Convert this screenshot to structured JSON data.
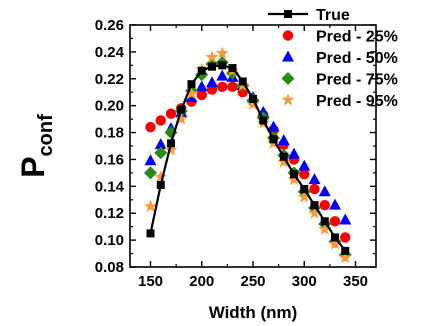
{
  "chart_data": {
    "type": "line",
    "xlabel": "Width (nm)",
    "ylabel_main": "P",
    "ylabel_sub": "conf",
    "xlim": [
      130,
      370
    ],
    "ylim": [
      0.08,
      0.26
    ],
    "xticks": [
      "150",
      "200",
      "250",
      "300",
      "350"
    ],
    "yticks": [
      "0.08",
      "0.10",
      "0.12",
      "0.14",
      "0.16",
      "0.18",
      "0.20",
      "0.22",
      "0.24",
      "0.26"
    ],
    "legend_position": "top-right",
    "x": [
      150,
      160,
      170,
      180,
      190,
      200,
      210,
      220,
      230,
      240,
      250,
      260,
      270,
      280,
      290,
      300,
      310,
      320,
      330,
      340
    ],
    "series": [
      {
        "name": "True",
        "marker": "square-line",
        "color": "#000000",
        "values": [
          0.105,
          0.141,
          0.172,
          0.197,
          0.216,
          0.226,
          0.229,
          0.23,
          0.228,
          0.218,
          0.205,
          0.189,
          0.175,
          0.162,
          0.149,
          0.138,
          0.126,
          0.114,
          0.102,
          0.092
        ]
      },
      {
        "name": "Pred - 25%",
        "marker": "circle",
        "color": "#ff0000",
        "values": [
          0.184,
          0.189,
          0.194,
          0.198,
          0.203,
          0.208,
          0.212,
          0.214,
          0.214,
          0.21,
          0.203,
          0.193,
          0.182,
          0.171,
          0.16,
          0.149,
          0.138,
          0.126,
          0.114,
          0.102
        ]
      },
      {
        "name": "Pred - 50%",
        "marker": "triangle",
        "color": "#0000ff",
        "values": [
          0.159,
          0.171,
          0.183,
          0.195,
          0.206,
          0.214,
          0.217,
          0.222,
          0.221,
          0.215,
          0.206,
          0.195,
          0.184,
          0.174,
          0.164,
          0.155,
          0.145,
          0.136,
          0.126,
          0.115
        ]
      },
      {
        "name": "Pred - 75%",
        "marker": "diamond",
        "color": "#2a8a12",
        "values": [
          0.15,
          0.165,
          0.18,
          0.196,
          0.211,
          0.223,
          0.231,
          0.232,
          0.224,
          0.215,
          0.204,
          0.191,
          0.176,
          0.163,
          0.15,
          0.136,
          0.124,
          0.112,
          0.099,
          0.089
        ]
      },
      {
        "name": "Pred - 95%",
        "marker": "star",
        "color": "#ff9933",
        "values": [
          0.125,
          0.147,
          0.167,
          0.19,
          0.209,
          0.227,
          0.236,
          0.239,
          0.226,
          0.215,
          0.201,
          0.187,
          0.172,
          0.158,
          0.145,
          0.132,
          0.12,
          0.108,
          0.097,
          0.087
        ]
      }
    ]
  }
}
